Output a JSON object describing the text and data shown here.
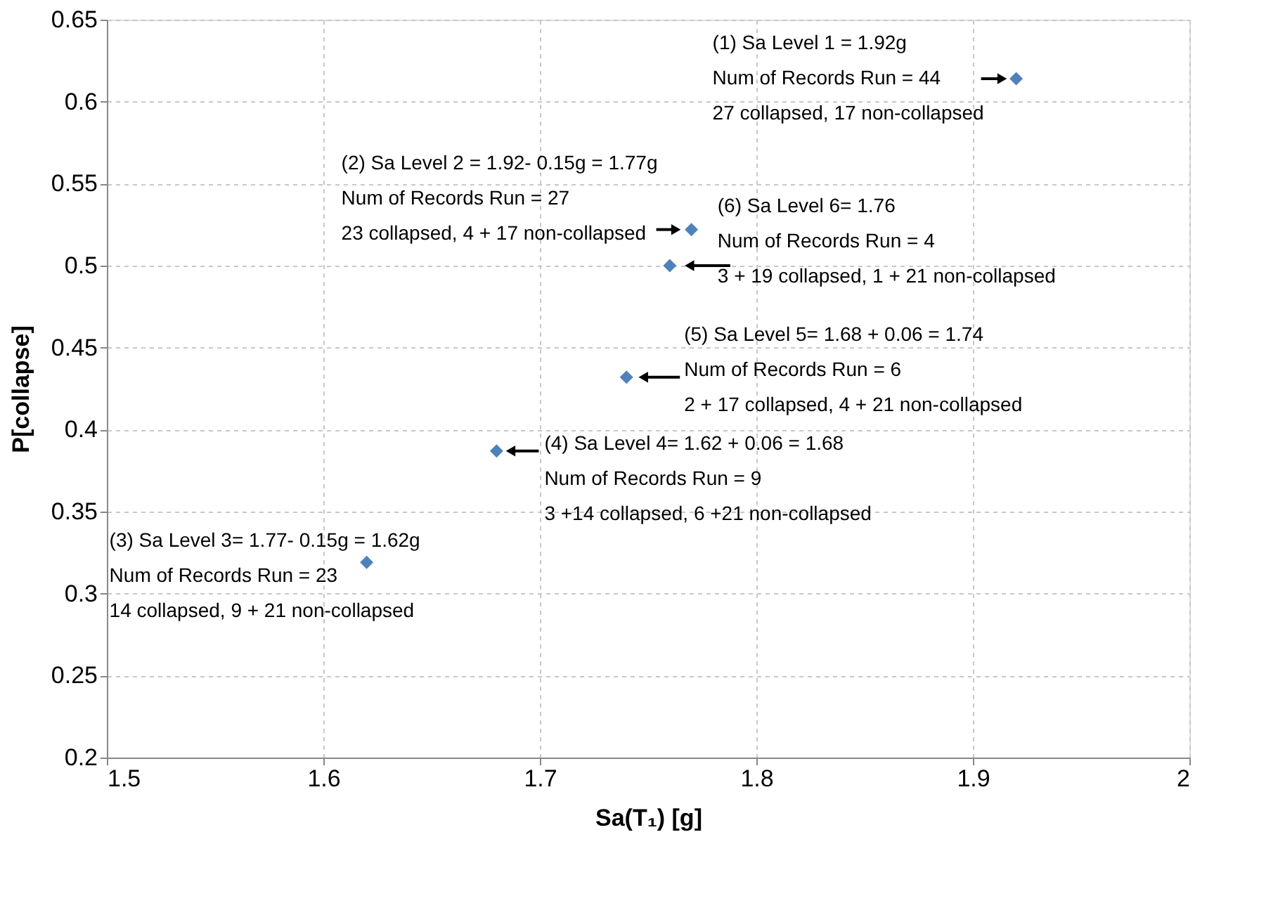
{
  "chart_data": {
    "type": "scatter",
    "xlabel": "Sa(T₁) [g]",
    "ylabel": "P[collapse]",
    "x": [
      1.92,
      1.77,
      1.76,
      1.74,
      1.68,
      1.62
    ],
    "series": [
      {
        "color": "#4f81bd",
        "values": [
          0.614,
          0.522,
          0.5,
          0.432,
          0.387,
          0.319
        ]
      }
    ],
    "marker": "diamond",
    "grid": true,
    "xlim": [
      1.5,
      2
    ],
    "xticks": [
      1.5,
      1.6,
      1.7,
      1.8,
      1.9,
      2
    ],
    "ylim": [
      0.2,
      0.65
    ],
    "yticks": [
      0.2,
      0.25,
      0.3,
      0.35,
      0.4,
      0.45,
      0.5,
      0.55,
      0.6,
      0.65
    ],
    "annotations": [
      {
        "text": "(1) Sa Level 1 = 1.92g\nNum of Records  Run = 44\n27 collapsed, 17 non-collapsed",
        "x": 1.92,
        "y": 0.614
      },
      {
        "text": "(2) Sa Level 2 = 1.92- 0.15g = 1.77g\nNum of Records  Run = 27\n23 collapsed, 4 + 17 non-collapsed",
        "x": 1.77,
        "y": 0.522
      },
      {
        "text": "(6) Sa Level 6= 1.76\nNum of Records  Run = 4\n3  + 19 collapsed, 1  + 21 non-collapsed",
        "x": 1.76,
        "y": 0.5
      },
      {
        "text": "(5) Sa Level 5= 1.68 + 0.06 = 1.74\nNum of Records  Run = 6\n2  + 17 collapsed, 4 + 21 non-collapsed",
        "x": 1.74,
        "y": 0.432
      },
      {
        "text": "(4) Sa Level 4= 1.62 + 0.06 = 1.68\nNum of Records  Run = 9\n3 +14 collapsed, 6 +21 non-collapsed",
        "x": 1.68,
        "y": 0.387
      },
      {
        "text": "(3) Sa Level 3= 1.77- 0.15g = 1.62g\nNum of Records  Run = 23\n14 collapsed, 9  + 21 non-collapsed",
        "x": 1.62,
        "y": 0.319
      }
    ]
  }
}
